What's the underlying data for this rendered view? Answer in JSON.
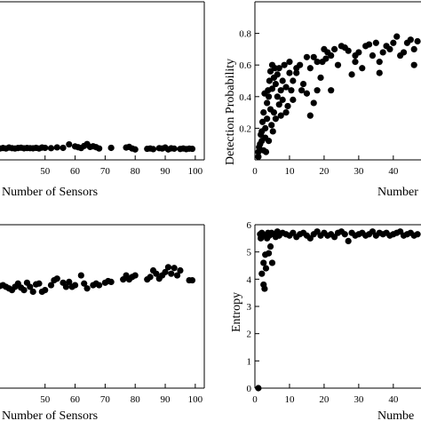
{
  "chart_data": [
    {
      "type": "scatter",
      "xlabel": "Number of Sensors",
      "ylabel": "",
      "x_ticks": [
        "50",
        "60",
        "70",
        "80",
        "90",
        "100"
      ],
      "y_ticks": [],
      "xlim": [
        35,
        103
      ],
      "ylim": [
        0,
        1
      ],
      "series": [
        {
          "points": [
            [
              35,
              0.072
            ],
            [
              36,
              0.075
            ],
            [
              37,
              0.072
            ],
            [
              38,
              0.078
            ],
            [
              39,
              0.074
            ],
            [
              40,
              0.072
            ],
            [
              41,
              0.075
            ],
            [
              42,
              0.077
            ],
            [
              43,
              0.073
            ],
            [
              44,
              0.075
            ],
            [
              45,
              0.074
            ],
            [
              46,
              0.073
            ],
            [
              47,
              0.076
            ],
            [
              48,
              0.072
            ],
            [
              49,
              0.078
            ],
            [
              50,
              0.076
            ],
            [
              52,
              0.074
            ],
            [
              54,
              0.079
            ],
            [
              56,
              0.076
            ],
            [
              58,
              0.098
            ],
            [
              60,
              0.085
            ],
            [
              61,
              0.08
            ],
            [
              62,
              0.075
            ],
            [
              63,
              0.088
            ],
            [
              64,
              0.1
            ],
            [
              65,
              0.082
            ],
            [
              66,
              0.086
            ],
            [
              67,
              0.08
            ],
            [
              68,
              0.072
            ],
            [
              72,
              0.076
            ],
            [
              77,
              0.078
            ],
            [
              78,
              0.082
            ],
            [
              79,
              0.072
            ],
            [
              80,
              0.066
            ],
            [
              84,
              0.07
            ],
            [
              85,
              0.072
            ],
            [
              86,
              0.068
            ],
            [
              88,
              0.074
            ],
            [
              89,
              0.072
            ],
            [
              90,
              0.078
            ],
            [
              91,
              0.066
            ],
            [
              92,
              0.073
            ],
            [
              93,
              0.071
            ],
            [
              95,
              0.069
            ],
            [
              96,
              0.072
            ],
            [
              97,
              0.068
            ],
            [
              98,
              0.071
            ],
            [
              99,
              0.07
            ]
          ]
        }
      ]
    },
    {
      "type": "scatter",
      "xlabel": "Number",
      "ylabel": "Detection Probability",
      "x_ticks": [
        "0",
        "10",
        "20",
        "30",
        "40"
      ],
      "y_ticks": [
        "0.2",
        "0.4",
        "0.6",
        "0.8"
      ],
      "xlim": [
        0,
        48
      ],
      "ylim": [
        0,
        1
      ],
      "series": [
        {
          "points": [
            [
              1,
              0.02
            ],
            [
              1,
              0.05
            ],
            [
              1.2,
              0.08
            ],
            [
              1.5,
              0.1
            ],
            [
              1.7,
              0.16
            ],
            [
              2,
              0.12
            ],
            [
              2,
              0.18
            ],
            [
              2.2,
              0.24
            ],
            [
              2.5,
              0.3
            ],
            [
              2.5,
              0.06
            ],
            [
              2.8,
              0.42
            ],
            [
              3,
              0.14
            ],
            [
              3,
              0.2
            ],
            [
              3.2,
              0.05
            ],
            [
              3.5,
              0.26
            ],
            [
              3.5,
              0.36
            ],
            [
              3.8,
              0.44
            ],
            [
              4,
              0.12
            ],
            [
              4,
              0.4
            ],
            [
              4.2,
              0.5
            ],
            [
              4.5,
              0.32
            ],
            [
              4.5,
              0.56
            ],
            [
              4.8,
              0.22
            ],
            [
              5,
              0.45
            ],
            [
              5,
              0.6
            ],
            [
              5.2,
              0.18
            ],
            [
              5.5,
              0.52
            ],
            [
              5.5,
              0.3
            ],
            [
              5.8,
              0.58
            ],
            [
              6,
              0.48
            ],
            [
              6,
              0.26
            ],
            [
              6.5,
              0.4
            ],
            [
              6.5,
              0.54
            ],
            [
              7,
              0.35
            ],
            [
              7,
              0.58
            ],
            [
              7.5,
              0.44
            ],
            [
              7.5,
              0.28
            ],
            [
              8,
              0.38
            ],
            [
              8,
              0.5
            ],
            [
              8.5,
              0.6
            ],
            [
              9,
              0.46
            ],
            [
              9,
              0.3
            ],
            [
              9.5,
              0.34
            ],
            [
              10,
              0.55
            ],
            [
              10,
              0.62
            ],
            [
              10.5,
              0.44
            ],
            [
              11,
              0.5
            ],
            [
              11,
              0.38
            ],
            [
              12,
              0.58
            ],
            [
              12,
              0.55
            ],
            [
              13,
              0.6
            ],
            [
              13.5,
              0.44
            ],
            [
              14,
              0.48
            ],
            [
              15,
              0.65
            ],
            [
              15,
              0.42
            ],
            [
              16,
              0.58
            ],
            [
              16,
              0.28
            ],
            [
              17,
              0.36
            ],
            [
              17,
              0.65
            ],
            [
              18,
              0.62
            ],
            [
              18,
              0.44
            ],
            [
              19,
              0.52
            ],
            [
              19.5,
              0.62
            ],
            [
              20,
              0.7
            ],
            [
              20.5,
              0.64
            ],
            [
              21,
              0.68
            ],
            [
              22,
              0.44
            ],
            [
              22,
              0.66
            ],
            [
              23,
              0.7
            ],
            [
              24,
              0.6
            ],
            [
              25,
              0.72
            ],
            [
              26,
              0.71
            ],
            [
              27,
              0.69
            ],
            [
              28,
              0.54
            ],
            [
              29,
              0.66
            ],
            [
              29,
              0.62
            ],
            [
              30,
              0.68
            ],
            [
              31,
              0.58
            ],
            [
              32,
              0.72
            ],
            [
              33,
              0.73
            ],
            [
              34,
              0.66
            ],
            [
              35,
              0.74
            ],
            [
              36,
              0.55
            ],
            [
              36,
              0.62
            ],
            [
              37,
              0.68
            ],
            [
              38,
              0.72
            ],
            [
              39,
              0.7
            ],
            [
              40,
              0.74
            ],
            [
              41,
              0.78
            ],
            [
              42,
              0.66
            ],
            [
              43,
              0.68
            ],
            [
              44,
              0.74
            ],
            [
              45,
              0.76
            ],
            [
              46,
              0.6
            ],
            [
              46,
              0.7
            ],
            [
              47,
              0.75
            ]
          ]
        }
      ]
    },
    {
      "type": "scatter",
      "xlabel": "Number of Sensors",
      "ylabel": "",
      "x_ticks": [
        "50",
        "60",
        "70",
        "80",
        "90",
        "100"
      ],
      "y_ticks": [],
      "xlim": [
        35,
        103
      ],
      "ylim": [
        0,
        1
      ],
      "series": [
        {
          "points": [
            [
              35,
              0.625
            ],
            [
              36,
              0.63
            ],
            [
              37,
              0.62
            ],
            [
              38,
              0.61
            ],
            [
              39,
              0.6
            ],
            [
              40,
              0.62
            ],
            [
              41,
              0.64
            ],
            [
              42,
              0.615
            ],
            [
              43,
              0.6
            ],
            [
              44,
              0.645
            ],
            [
              45,
              0.62
            ],
            [
              46,
              0.59
            ],
            [
              47,
              0.635
            ],
            [
              48,
              0.64
            ],
            [
              49,
              0.59
            ],
            [
              50,
              0.6
            ],
            [
              52,
              0.63
            ],
            [
              53,
              0.66
            ],
            [
              54,
              0.67
            ],
            [
              56,
              0.645
            ],
            [
              57,
              0.62
            ],
            [
              58,
              0.65
            ],
            [
              59,
              0.62
            ],
            [
              60,
              0.63
            ],
            [
              62,
              0.69
            ],
            [
              63,
              0.64
            ],
            [
              64,
              0.61
            ],
            [
              66,
              0.63
            ],
            [
              67,
              0.64
            ],
            [
              68,
              0.63
            ],
            [
              70,
              0.645
            ],
            [
              71,
              0.655
            ],
            [
              72,
              0.65
            ],
            [
              76,
              0.665
            ],
            [
              77,
              0.69
            ],
            [
              78,
              0.665
            ],
            [
              79,
              0.68
            ],
            [
              80,
              0.69
            ],
            [
              84,
              0.665
            ],
            [
              85,
              0.68
            ],
            [
              86,
              0.72
            ],
            [
              87,
              0.7
            ],
            [
              88,
              0.67
            ],
            [
              89,
              0.69
            ],
            [
              90,
              0.71
            ],
            [
              91,
              0.74
            ],
            [
              92,
              0.7
            ],
            [
              93,
              0.735
            ],
            [
              94,
              0.69
            ],
            [
              95,
              0.72
            ],
            [
              98,
              0.66
            ],
            [
              99,
              0.66
            ]
          ]
        }
      ]
    },
    {
      "type": "scatter",
      "xlabel": "Numbe",
      "ylabel": "Entropy",
      "x_ticks": [
        "0",
        "10",
        "20",
        "30",
        "40"
      ],
      "y_ticks": [
        "0",
        "1",
        "2",
        "3",
        "4",
        "5",
        "6"
      ],
      "xlim": [
        0,
        48
      ],
      "ylim": [
        0,
        6
      ],
      "series": [
        {
          "points": [
            [
              1,
              0
            ],
            [
              1.5,
              5.65
            ],
            [
              1.7,
              5.5
            ],
            [
              2,
              5.7
            ],
            [
              2,
              4.2
            ],
            [
              2.2,
              5.6
            ],
            [
              2.5,
              4.6
            ],
            [
              2.5,
              3.8
            ],
            [
              2.8,
              3.65
            ],
            [
              3,
              5.6
            ],
            [
              3,
              4.9
            ],
            [
              3.2,
              4.4
            ],
            [
              3.5,
              5.5
            ],
            [
              3.8,
              5.7
            ],
            [
              4,
              4.95
            ],
            [
              4.2,
              5.6
            ],
            [
              4.5,
              5.2
            ],
            [
              4.8,
              5.7
            ],
            [
              5,
              4.6
            ],
            [
              5.5,
              5.65
            ],
            [
              6,
              5.55
            ],
            [
              6.5,
              5.75
            ],
            [
              7,
              5.6
            ],
            [
              8,
              5.7
            ],
            [
              9,
              5.65
            ],
            [
              10,
              5.6
            ],
            [
              11,
              5.7
            ],
            [
              12,
              5.55
            ],
            [
              13,
              5.65
            ],
            [
              14,
              5.7
            ],
            [
              15,
              5.6
            ],
            [
              16,
              5.5
            ],
            [
              17,
              5.65
            ],
            [
              18,
              5.75
            ],
            [
              19,
              5.6
            ],
            [
              20,
              5.7
            ],
            [
              21,
              5.6
            ],
            [
              22,
              5.65
            ],
            [
              23,
              5.55
            ],
            [
              24,
              5.7
            ],
            [
              25,
              5.75
            ],
            [
              26,
              5.65
            ],
            [
              27,
              5.4
            ],
            [
              28,
              5.7
            ],
            [
              29,
              5.6
            ],
            [
              30,
              5.65
            ],
            [
              31,
              5.7
            ],
            [
              32,
              5.6
            ],
            [
              33,
              5.65
            ],
            [
              34,
              5.75
            ],
            [
              35,
              5.6
            ],
            [
              36,
              5.7
            ],
            [
              37,
              5.65
            ],
            [
              38,
              5.7
            ],
            [
              39,
              5.6
            ],
            [
              40,
              5.65
            ],
            [
              41,
              5.7
            ],
            [
              42,
              5.75
            ],
            [
              43,
              5.6
            ],
            [
              44,
              5.65
            ],
            [
              45,
              5.7
            ],
            [
              46,
              5.6
            ],
            [
              47,
              5.65
            ]
          ]
        }
      ]
    }
  ]
}
